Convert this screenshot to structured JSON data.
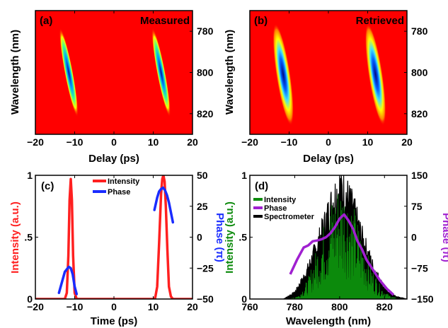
{
  "colors": {
    "background_red": "#ff0000",
    "intensity_red": "#ff2020",
    "phase_blue": "#1a2cff",
    "spec_green": "#0c8a0c",
    "phase_purple": "#a020d0",
    "spec_black": "#000000"
  },
  "chart_data": [
    {
      "type": "heatmap",
      "panel_label": "(a)",
      "title": "Measured",
      "xlabel": "Delay (ps)",
      "ylabel": "Wavelength (nm)",
      "xlim": [
        -20,
        20
      ],
      "ylim": [
        770,
        830
      ],
      "xticks": [
        "-20",
        "-10",
        "0",
        "10",
        "20"
      ],
      "yticks": [
        "780",
        "800",
        "820"
      ],
      "features": [
        {
          "delay_center": -11.5,
          "wavelength_center": 800,
          "wavelength_span": [
            778,
            822
          ],
          "delay_slope_ps_per_nm": 0.1
        },
        {
          "delay_center": 12,
          "wavelength_center": 800,
          "wavelength_span": [
            778,
            822
          ],
          "delay_slope_ps_per_nm": 0.1
        }
      ]
    },
    {
      "type": "heatmap",
      "panel_label": "(b)",
      "title": "Retrieved",
      "xlabel": "Delay (ps)",
      "ylabel": "Wavelength (nm)",
      "xlim": [
        -20,
        20
      ],
      "ylim": [
        770,
        830
      ],
      "xticks": [
        "-20",
        "-10",
        "0",
        "10",
        "20"
      ],
      "yticks": [
        "780",
        "800",
        "820"
      ],
      "features": [
        {
          "delay_center": -11.5,
          "wavelength_center": 801,
          "wavelength_span": [
            776,
            826
          ],
          "delay_slope_ps_per_nm": 0.08
        },
        {
          "delay_center": 12,
          "wavelength_center": 801,
          "wavelength_span": [
            776,
            826
          ],
          "delay_slope_ps_per_nm": 0.08
        }
      ]
    },
    {
      "type": "line",
      "panel_label": "(c)",
      "xlabel": "Time (ps)",
      "ylabel": "Intensity (a.u.)",
      "ylabel_right": "Phase (π)",
      "xlim": [
        -20,
        20
      ],
      "ylim": [
        0,
        1
      ],
      "ylim_right": [
        -50,
        50
      ],
      "xticks": [
        "-20",
        "-10",
        "0",
        "10",
        "20"
      ],
      "yticks": [
        "0",
        ".5",
        "1"
      ],
      "yticks_right": [
        "-50",
        "-25",
        "0",
        "25",
        "50"
      ],
      "legend": [
        "Intensity",
        "Phase"
      ],
      "series": [
        {
          "name": "Intensity",
          "axis": "left",
          "x": [
            -20,
            -14,
            -12.5,
            -12,
            -11.6,
            -11.3,
            -11,
            -10.7,
            -10.4,
            -10,
            -9.5,
            -8,
            0,
            10,
            10.5,
            11,
            11.5,
            12,
            12.3,
            12.6,
            12.9,
            13.2,
            13.6,
            14,
            14.5,
            15,
            20
          ],
          "y": [
            0,
            0,
            0,
            0.05,
            0.35,
            0.8,
            0.97,
            0.8,
            0.35,
            0.05,
            0,
            0,
            0,
            0,
            0.01,
            0.1,
            0.45,
            0.85,
            0.97,
            1.0,
            0.95,
            0.75,
            0.4,
            0.1,
            0.02,
            0,
            0
          ]
        },
        {
          "name": "Phase",
          "axis": "right",
          "x": [
            -14,
            -13.2,
            -12.5,
            -12,
            -11.5,
            -11,
            -10.5,
            -10,
            -9.5
          ],
          "y": [
            -45,
            -36,
            -28,
            -26,
            -24,
            -25,
            -30,
            -40,
            -46
          ]
        },
        {
          "name": "Phase",
          "axis": "right",
          "x": [
            10.3,
            11,
            11.5,
            12,
            12.5,
            13,
            13.5,
            14,
            14.5,
            15
          ],
          "y": [
            22,
            32,
            37,
            39,
            40,
            38,
            34,
            28,
            20,
            12
          ]
        }
      ]
    },
    {
      "type": "line",
      "panel_label": "(d)",
      "xlabel": "Wavelength (nm)",
      "ylabel": "Intensity (a.u.)",
      "ylabel_right": "Phase (π)",
      "xlim": [
        760,
        830
      ],
      "ylim": [
        0,
        1
      ],
      "ylim_right": [
        -150,
        150
      ],
      "xticks": [
        "760",
        "780",
        "800",
        "820"
      ],
      "yticks": [
        "0",
        ".5",
        "1"
      ],
      "yticks_right": [
        "-150",
        "-75",
        "0",
        "75",
        "150"
      ],
      "legend": [
        "Intensity",
        "Phase",
        "Spectrometer"
      ],
      "series": [
        {
          "name": "Intensity",
          "axis": "left",
          "envelope_x": [
            778,
            782,
            786,
            790,
            794,
            797,
            800,
            803,
            806,
            810,
            814,
            818,
            822,
            826
          ],
          "envelope_y": [
            0.0,
            0.03,
            0.15,
            0.38,
            0.6,
            0.75,
            0.85,
            0.8,
            0.68,
            0.45,
            0.25,
            0.1,
            0.03,
            0.0
          ]
        },
        {
          "name": "Phase",
          "axis": "right",
          "x": [
            778,
            781,
            784,
            786,
            788,
            790,
            792,
            794,
            796,
            798,
            800,
            802,
            804,
            806,
            808,
            810,
            812,
            815,
            818,
            821,
            824
          ],
          "y": [
            -90,
            -55,
            -25,
            -20,
            -10,
            -8,
            -5,
            0,
            10,
            25,
            45,
            55,
            40,
            20,
            -10,
            -30,
            -55,
            -80,
            -105,
            -125,
            -140
          ]
        },
        {
          "name": "Spectrometer",
          "axis": "left",
          "envelope_x": [
            775,
            780,
            785,
            790,
            794,
            797,
            800,
            803,
            806,
            810,
            815,
            820,
            825,
            830
          ],
          "envelope_y": [
            0.0,
            0.05,
            0.2,
            0.42,
            0.62,
            0.78,
            0.88,
            0.82,
            0.7,
            0.48,
            0.25,
            0.08,
            0.02,
            0.0
          ]
        }
      ]
    }
  ]
}
